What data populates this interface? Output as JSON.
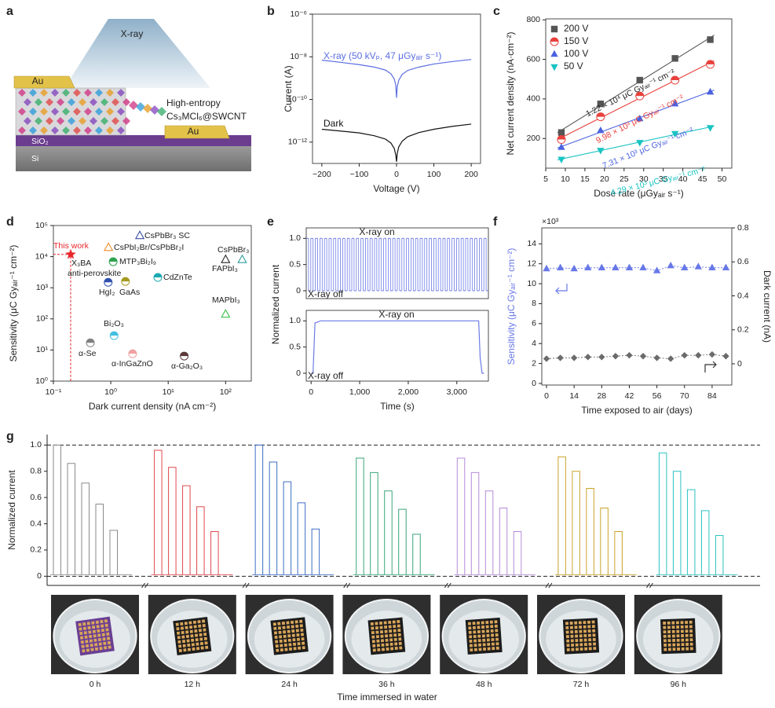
{
  "schematic": {
    "label": "a",
    "xray": "X-ray",
    "electrode_left": "Au",
    "electrode_right": "Au",
    "material": [
      "High-entropy",
      "Cs₃MCl₆@SWCNT"
    ],
    "layers": [
      "SiO₂",
      "Si"
    ]
  },
  "chart_data": [
    {
      "label": "b",
      "type": "line",
      "log_y": true,
      "x_label": "Voltage (V)",
      "y_label": "Current (A)",
      "xlim": [
        -225,
        225
      ],
      "xticks": [
        {
          "value": -200,
          "label": "−200"
        },
        {
          "value": -100,
          "label": "−100"
        },
        0,
        100,
        200
      ],
      "ylim": [
        1e-13,
        1e-06
      ],
      "yticks": [
        {
          "value": 1e-12,
          "label": "10⁻¹²"
        },
        {
          "value": 1e-10,
          "label": "10⁻¹⁰"
        },
        {
          "value": 1e-08,
          "label": "10⁻⁸"
        },
        {
          "value": 1e-06,
          "label": "10⁻⁶"
        }
      ],
      "series": [
        {
          "name": "X-ray (50 kVₚ, 47 μGyₐᵢᵣ s⁻¹)",
          "color": "#5b6ee1",
          "x": [
            -200,
            -150,
            -100,
            -60,
            -30,
            -15,
            -6,
            -2,
            0,
            2,
            6,
            15,
            30,
            60,
            100,
            150,
            200
          ],
          "values": [
            7e-09,
            5.5e-09,
            4.3e-09,
            3.3e-09,
            2.4e-09,
            1.6e-09,
            9e-10,
            4.5e-10,
            1.2e-10,
            4e-10,
            8e-10,
            1.5e-09,
            2.3e-09,
            3.3e-09,
            4.6e-09,
            6e-09,
            7.5e-09
          ]
        },
        {
          "name": "Dark",
          "color": "#111111",
          "x": [
            -200,
            -150,
            -100,
            -60,
            -30,
            -15,
            -6,
            -2,
            0,
            2,
            6,
            15,
            30,
            60,
            100,
            150,
            200
          ],
          "values": [
            4e-12,
            3.3e-12,
            2.7e-12,
            2e-12,
            1.4e-12,
            9e-13,
            5e-13,
            2.5e-13,
            1.2e-13,
            3e-13,
            6e-13,
            1.1e-12,
            1.8e-12,
            2.8e-12,
            4e-12,
            5.5e-12,
            7e-12
          ]
        }
      ]
    },
    {
      "label": "c",
      "type": "scatter",
      "fit": true,
      "legend": "top-left",
      "x_label": "Dose rate (μGyₐᵢᵣ s⁻¹)",
      "y_label": "Net current density (nA·cm⁻²)",
      "xlim": [
        5,
        52.5
      ],
      "xticks": [
        5,
        10,
        15,
        20,
        25,
        30,
        35,
        40,
        45,
        50
      ],
      "ylim": [
        50,
        805
      ],
      "yticks": [
        200,
        400,
        600,
        800
      ],
      "x": [
        9,
        19,
        29,
        38,
        47
      ],
      "series": [
        {
          "name": "200 V",
          "color": "#555555",
          "marker": "square",
          "values": [
            230,
            375,
            495,
            605,
            700
          ]
        },
        {
          "name": "150 V",
          "color": "#e8413c",
          "marker": "half",
          "values": [
            195,
            310,
            415,
            495,
            575
          ]
        },
        {
          "name": "100 V",
          "color": "#4a62e0",
          "marker": "triangle",
          "values": [
            155,
            240,
            300,
            375,
            435
          ]
        },
        {
          "name": "50 V",
          "color": "#19c3c3",
          "marker": "triangle-down",
          "values": [
            95,
            140,
            180,
            225,
            255
          ]
        }
      ],
      "annotations": [
        "1.22 × 10⁴ μC Gyₐᵢᵣ⁻¹ cm⁻²",
        "9.98 × 10³ μC Gyₐᵢᵣ⁻¹ cm⁻²",
        "7.31 × 10³ μC Gyₐᵢᵣ⁻¹ cm⁻²",
        "4.29 × 10³ μC Gyₐᵢᵣ⁻¹ cm⁻²"
      ]
    },
    {
      "label": "d",
      "type": "scatter",
      "log_x": true,
      "log_y": true,
      "x_label": "Dark current density (nA cm⁻²)",
      "y_label": "Sensitivity (μC Gyₐᵢᵣ⁻¹ cm⁻²)",
      "xlim": [
        0.1,
        280
      ],
      "xticks": [
        {
          "value": 0.1,
          "label": "10⁻¹"
        },
        {
          "value": 1,
          "label": "10⁰"
        },
        {
          "value": 10,
          "label": "10¹"
        },
        {
          "value": 100,
          "label": "10²"
        }
      ],
      "ylim": [
        1,
        100000
      ],
      "yticks": [
        {
          "value": 1,
          "label": "10⁰"
        },
        {
          "value": 10,
          "label": "10¹"
        },
        {
          "value": 100,
          "label": "10²"
        },
        {
          "value": 1000,
          "label": "10³"
        },
        {
          "value": 10000,
          "label": "10⁴"
        },
        {
          "value": 100000,
          "label": "10⁵"
        }
      ],
      "categories": [
        "This work",
        "CsPbBr₃ SC",
        "CsPbI₂Br/CsPbBr₂I",
        "MTP₃Bi₂I₉",
        "CdZnTe",
        "HgI₂",
        "GaAs",
        "Bi₂O₃",
        "α-Se",
        "α-InGaZnO",
        "α-Ga₂O₃",
        "MAPbI₃",
        "FAPbI₃",
        "CsPbBr₃"
      ],
      "x": [
        0.2,
        3.2,
        0.91,
        1.1,
        6.6,
        0.9,
        1.8,
        1.14,
        0.44,
        2.4,
        19,
        100,
        100,
        195
      ],
      "values": [
        11800,
        47000,
        19500,
        6900,
        2150,
        1500,
        1600,
        29,
        17,
        7.6,
        6.4,
        140,
        8000,
        8000
      ],
      "colors": [
        "#e8262b",
        "#3a4ea6",
        "#f08c2a",
        "#2ea24e",
        "#1aaab0",
        "#3050b0",
        "#a59a20",
        "#40c0e0",
        "#808080",
        "#f0a0a0",
        "#5a3a3a",
        "#3cc24a",
        "#222222",
        "#2a9a9a"
      ],
      "markers": [
        "star",
        "tri-open",
        "tri-open",
        "half",
        "half",
        "half",
        "half",
        "half",
        "half",
        "half",
        "half",
        "tri-open",
        "tri-open",
        "tri-open"
      ],
      "annotations": [
        "X₃BA",
        "anti-perovskite"
      ]
    },
    {
      "label": "e",
      "type": "step",
      "y_label": "Normalized current",
      "ylim": [
        -0.15,
        1.2
      ],
      "yticks": [
        0,
        0.5,
        {
          "value": 1,
          "label": "1.0"
        }
      ],
      "color": "#6b7be6",
      "values": [
        1,
        0,
        1,
        0,
        1,
        0,
        1,
        0,
        1,
        0,
        1,
        0,
        1,
        0,
        1,
        0,
        1,
        0,
        1,
        0,
        1,
        0,
        1,
        0,
        1,
        0,
        1,
        0,
        1,
        0,
        1,
        0,
        1,
        0,
        1,
        0,
        1,
        0,
        1,
        0,
        1,
        0,
        1,
        0,
        1,
        0,
        1,
        0,
        1,
        0,
        1,
        0,
        1,
        0,
        1,
        0,
        1,
        0,
        1,
        0,
        1,
        0,
        1,
        0,
        1,
        0,
        1,
        0,
        1,
        0,
        1,
        0,
        1,
        0,
        1,
        0,
        1,
        0,
        1,
        0
      ],
      "annotations": [
        "X-ray on",
        "X-ray off"
      ]
    },
    {
      "type": "line",
      "x_label": "Time (s)",
      "xlim": [
        -100,
        3650
      ],
      "xticks": [
        0,
        {
          "value": 1000,
          "label": "1,000"
        },
        {
          "value": 2000,
          "label": "2,000"
        },
        {
          "value": 3000,
          "label": "3,000"
        }
      ],
      "ylim": [
        -0.15,
        1.2
      ],
      "yticks": [
        0,
        0.5,
        {
          "value": 1,
          "label": "1.0"
        }
      ],
      "color": "#6b7be6",
      "x": [
        0,
        40,
        80,
        200,
        3450,
        3480,
        3520,
        3560
      ],
      "values": [
        0,
        0,
        0.96,
        1.0,
        1.0,
        0.3,
        0,
        0
      ],
      "annotations": [
        "X-ray on",
        "X-ray off"
      ]
    },
    {
      "label": "f",
      "type": "scatter",
      "connect": "dashed",
      "x_label": "Time exposed to air (days)",
      "y_label": "Sensitivity (μC Gyₐᵢᵣ⁻¹ cm⁻²)",
      "y2_label": "Dark current (nA)",
      "y_unit": "×10³",
      "xlim": [
        -2.4,
        94
      ],
      "xticks": [
        0,
        14,
        28,
        42,
        56,
        70,
        84
      ],
      "ylim": [
        -0.16,
        15.6
      ],
      "yticks": [
        0,
        2,
        4,
        6,
        8,
        10,
        12,
        14
      ],
      "y2lim": [
        -0.125,
        0.8
      ],
      "y2ticks": [
        0,
        0.2,
        0.4,
        0.6,
        0.8
      ],
      "x": [
        0,
        7,
        14,
        21,
        28,
        35,
        42,
        49,
        56,
        63,
        70,
        77,
        84,
        91
      ],
      "series": [
        {
          "color": "#6878e8",
          "marker": "triangle",
          "values": [
            11.5,
            11.6,
            11.5,
            11.6,
            11.6,
            11.6,
            11.6,
            11.6,
            11.3,
            11.8,
            11.6,
            11.7,
            11.6,
            11.6
          ]
        },
        {
          "color": "#6b6b6b",
          "marker": "diamond",
          "axis": "y2",
          "values": [
            0.03,
            0.035,
            0.035,
            0.04,
            0.04,
            0.045,
            0.05,
            0.045,
            0.035,
            0.03,
            0.05,
            0.05,
            0.055,
            0.045
          ]
        }
      ]
    },
    {
      "label": "g",
      "type": "pulse",
      "y_label": "Normalized current",
      "x_label": "Time immersed in water",
      "ylim": [
        -0.07,
        1.08
      ],
      "yticks": [
        0,
        0.2,
        0.4,
        0.6,
        0.8,
        {
          "value": 1,
          "label": "1.0"
        }
      ],
      "reference_lines": [
        0,
        1
      ],
      "series": [
        {
          "name": "0 h",
          "color": "#8a8a8a",
          "values": [
            1.0,
            0.86,
            0.71,
            0.55,
            0.35
          ]
        },
        {
          "name": "12 h",
          "color": "#e0474c",
          "values": [
            0.96,
            0.83,
            0.69,
            0.53,
            0.34
          ]
        },
        {
          "name": "24 h",
          "color": "#3d6fc4",
          "values": [
            1.0,
            0.87,
            0.72,
            0.56,
            0.36
          ]
        },
        {
          "name": "36 h",
          "color": "#3aa57a",
          "values": [
            0.9,
            0.79,
            0.65,
            0.51,
            0.32
          ]
        },
        {
          "name": "48 h",
          "color": "#b48ad8",
          "values": [
            0.9,
            0.79,
            0.65,
            0.52,
            0.34
          ]
        },
        {
          "name": "72 h",
          "color": "#c9a227",
          "values": [
            0.91,
            0.8,
            0.67,
            0.52,
            0.34
          ]
        },
        {
          "name": "96 h",
          "color": "#2cc2c2",
          "values": [
            0.94,
            0.8,
            0.66,
            0.5,
            0.31
          ]
        }
      ]
    }
  ]
}
